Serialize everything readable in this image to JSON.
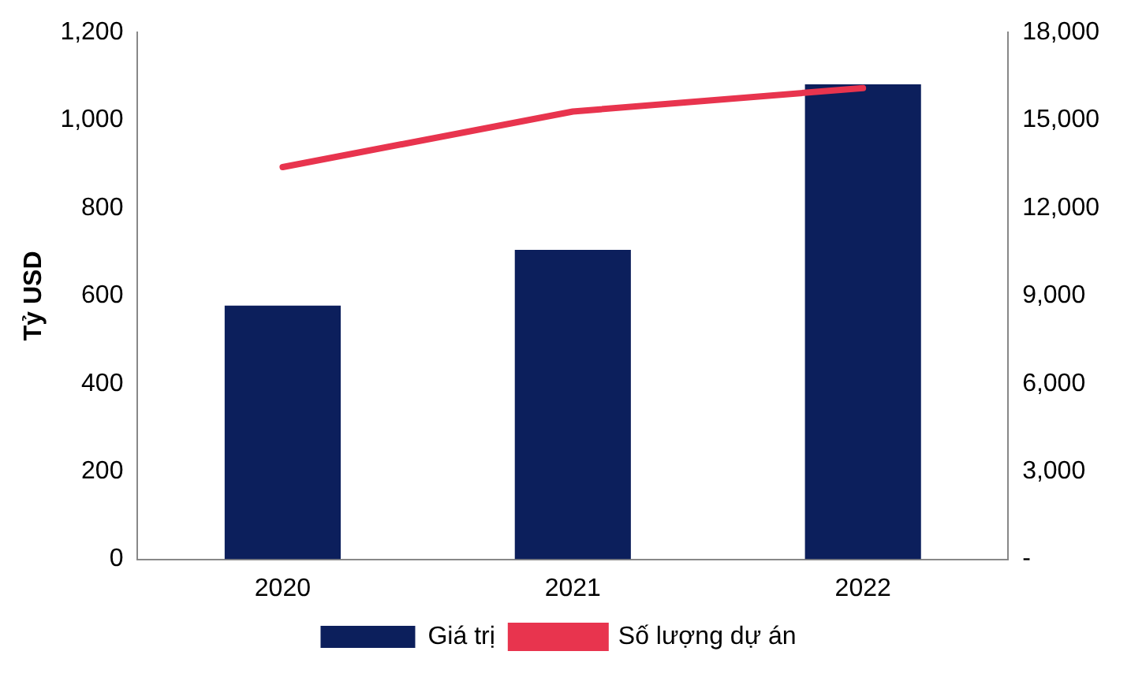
{
  "chart_data": {
    "type": "bar",
    "ylabel": "Tỷ USD",
    "categories": [
      "2020",
      "2021",
      "2022"
    ],
    "series": [
      {
        "name": "Giá trị",
        "color": "#0c1f5c",
        "values": [
          578,
          705,
          1082
        ]
      },
      {
        "name": "Số lượng dự án",
        "type": "line",
        "axis": "y2",
        "color": "#e8344e",
        "values": [
          13400,
          15300,
          16100
        ]
      }
    ],
    "ylim": [
      0,
      1200
    ],
    "yticks": [
      0,
      200,
      400,
      600,
      800,
      {
        "value": 1000,
        "label": "1,000"
      },
      {
        "value": 1200,
        "label": "1,200"
      }
    ],
    "y2lim": [
      0,
      18000
    ],
    "y2ticks": [
      {
        "value": 0,
        "label": "-"
      },
      {
        "value": 3000,
        "label": "3,000"
      },
      {
        "value": 6000,
        "label": "6,000"
      },
      {
        "value": 9000,
        "label": "9,000"
      },
      {
        "value": 12000,
        "label": "12,000"
      },
      {
        "value": 15000,
        "label": "15,000"
      },
      {
        "value": 18000,
        "label": "18,000"
      }
    ],
    "grid": false,
    "legend": "bottom",
    "marker": "none"
  }
}
